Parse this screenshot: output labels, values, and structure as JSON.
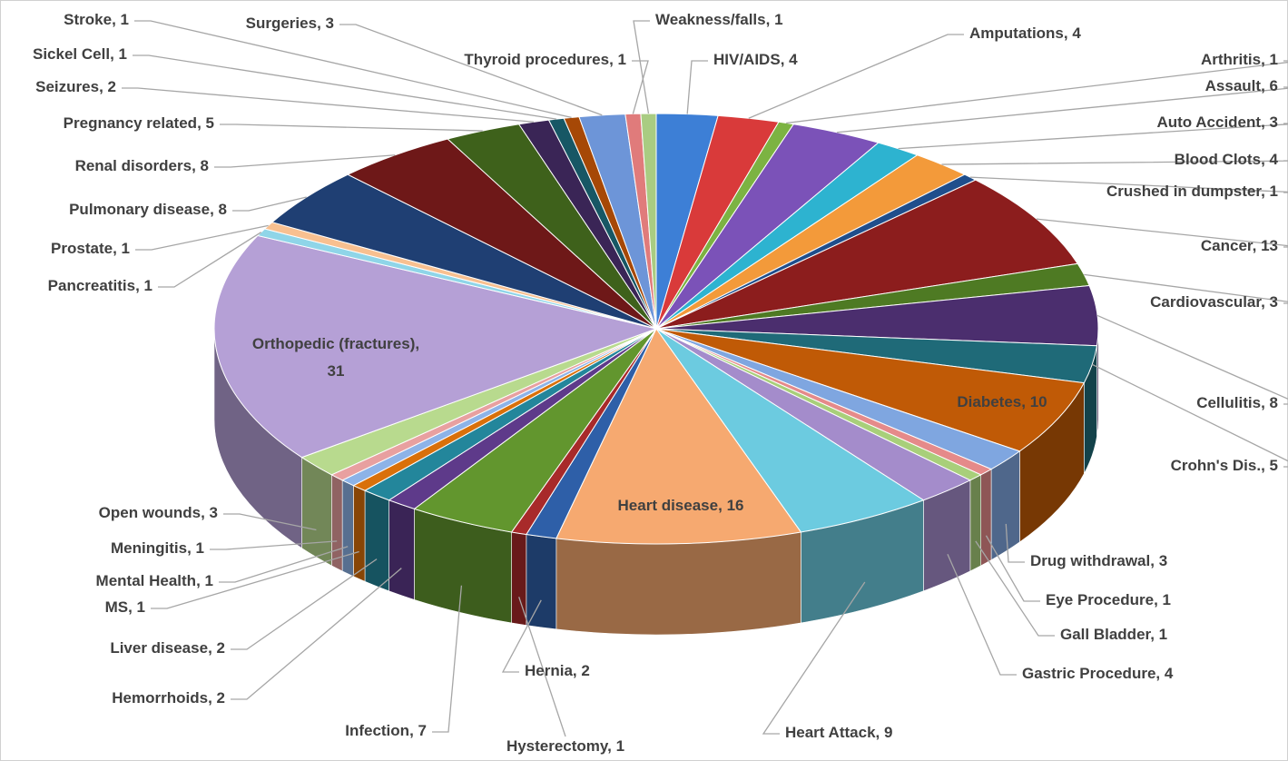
{
  "chart_data": {
    "type": "pie",
    "three_d": true,
    "categories": [
      "HIV/AIDS",
      "Amputations",
      "Arthritis",
      "Assault",
      "Auto Accident",
      "Blood Clots",
      "Crushed in dumpster",
      "Cancer",
      "Cardiovascular",
      "Cellulitis",
      "Crohn's Dis.",
      "Diabetes",
      "Drug withdrawal",
      "Eye Procedure",
      "Gall Bladder",
      "Gastric Procedure",
      "Heart Attack",
      "Heart disease",
      "Hernia",
      "Hysterectomy",
      "Infection",
      "Hemorrhoids",
      "Liver disease",
      "MS",
      "Mental Health",
      "Meningitis",
      "Open wounds",
      "Orthopedic (fractures)",
      "Pancreatitis",
      "Prostate",
      "Pulmonary disease",
      "Renal disorders",
      "Pregnancy related",
      "Seizures",
      "Sickel Cell",
      "Stroke",
      "Surgeries",
      "Thyroid procedures",
      "Weakness/falls"
    ],
    "values": [
      4,
      4,
      1,
      6,
      3,
      4,
      1,
      13,
      3,
      8,
      5,
      10,
      3,
      1,
      1,
      4,
      9,
      16,
      2,
      1,
      7,
      2,
      2,
      1,
      1,
      1,
      3,
      31,
      1,
      1,
      8,
      8,
      5,
      2,
      1,
      1,
      3,
      1,
      1
    ],
    "colors": [
      "#3D7FD6",
      "#D93A3A",
      "#7CB342",
      "#7B52B8",
      "#2DB3D0",
      "#F39A3A",
      "#1F4E8C",
      "#8C1D1D",
      "#4E7A23",
      "#4B2E6E",
      "#1F6A78",
      "#C05A06",
      "#7FA6E0",
      "#E58A8A",
      "#A8CF7A",
      "#A48CCB",
      "#6CCBE0",
      "#F6A970",
      "#2E5FA8",
      "#A82A2A",
      "#62962E",
      "#5E3A8A",
      "#23869B",
      "#D9700A",
      "#8DB3E8",
      "#E8A0A0",
      "#B8DA8E",
      "#B5A0D6",
      "#8FD5E8",
      "#F8C090",
      "#1F3F73",
      "#6E1818",
      "#3E611B",
      "#3A2556",
      "#175765",
      "#A64806",
      "#6D95D8",
      "#E07B7B",
      "#A9CC82"
    ]
  }
}
